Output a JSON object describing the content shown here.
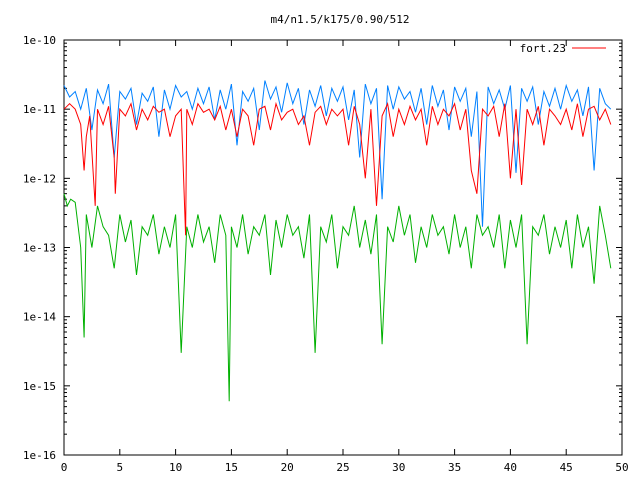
{
  "chart_data": {
    "type": "line",
    "title": "m4/n1.5/k175/0.90/512",
    "xlabel": "",
    "ylabel": "",
    "xlim": [
      0,
      50
    ],
    "ylim": [
      1e-16,
      1e-10
    ],
    "yscale": "log",
    "grid": false,
    "legend_position": "top-right",
    "x_ticks": [
      0,
      5,
      10,
      15,
      20,
      25,
      30,
      35,
      40,
      45,
      50
    ],
    "x_tick_labels": [
      "0",
      "5",
      "10",
      "15",
      "20",
      "25",
      "30",
      "35",
      "40",
      "45",
      "50"
    ],
    "y_ticks": [
      1e-16,
      1e-15,
      1e-14,
      1e-13,
      1e-12,
      1e-11,
      1e-10
    ],
    "y_tick_labels": [
      "1e-16",
      "1e-15",
      "1e-14",
      "1e-13",
      "1e-12",
      "1e-11",
      "1e-10"
    ],
    "series": [
      {
        "name": "fort.23",
        "color": "#ff0000",
        "x": [
          0.0,
          0.5,
          1.0,
          1.5,
          1.8,
          2.0,
          2.3,
          2.8,
          3.0,
          3.5,
          4.0,
          4.5,
          4.6,
          5.0,
          5.5,
          6.0,
          6.5,
          7.0,
          7.5,
          8.0,
          8.5,
          9.0,
          9.5,
          10.0,
          10.5,
          10.9,
          11.0,
          11.5,
          12.0,
          12.5,
          13.0,
          13.5,
          14.0,
          14.5,
          15.0,
          15.5,
          16.0,
          16.5,
          17.0,
          17.5,
          18.0,
          18.5,
          19.0,
          19.5,
          20.0,
          20.5,
          21.0,
          21.5,
          22.0,
          22.5,
          23.0,
          23.5,
          24.0,
          24.5,
          25.0,
          25.5,
          26.0,
          26.5,
          27.0,
          27.5,
          28.0,
          28.5,
          29.0,
          29.5,
          30.0,
          30.5,
          31.0,
          31.5,
          32.0,
          32.5,
          33.0,
          33.5,
          34.0,
          34.5,
          35.0,
          35.5,
          36.0,
          36.5,
          37.0,
          37.5,
          38.0,
          38.5,
          39.0,
          39.5,
          40.0,
          40.5,
          41.0,
          41.5,
          42.0,
          42.5,
          43.0,
          43.5,
          44.0,
          44.5,
          45.0,
          45.5,
          46.0,
          46.5,
          47.0,
          47.5,
          48.0,
          48.5,
          49.0
        ],
        "values": [
          1e-11,
          1.2e-11,
          1e-11,
          6e-12,
          1.3e-12,
          4e-12,
          8e-12,
          4e-13,
          1e-11,
          6e-12,
          1.1e-11,
          2e-12,
          6e-13,
          1e-11,
          8e-12,
          1.2e-11,
          5e-12,
          1e-11,
          7e-12,
          1.1e-11,
          9e-12,
          1e-11,
          4e-12,
          8e-12,
          1e-11,
          1.5e-13,
          1e-11,
          6e-12,
          1.2e-11,
          9e-12,
          1e-11,
          7e-12,
          1.1e-11,
          5e-12,
          1e-11,
          4e-12,
          1e-11,
          8e-12,
          3e-12,
          1e-11,
          1.1e-11,
          5e-12,
          1.2e-11,
          7e-12,
          9e-12,
          1e-11,
          6e-12,
          8e-12,
          3e-12,
          9e-12,
          1.1e-11,
          6e-12,
          1e-11,
          8e-12,
          1e-11,
          3e-12,
          1.1e-11,
          6e-12,
          1e-12,
          1e-11,
          4e-13,
          8e-12,
          1.2e-11,
          4e-12,
          1e-11,
          6e-12,
          1.1e-11,
          7e-12,
          1e-11,
          3e-12,
          1.1e-11,
          6e-12,
          1e-11,
          8e-12,
          1.2e-11,
          5e-12,
          1e-11,
          1.3e-12,
          6e-13,
          1e-11,
          8e-12,
          1.1e-11,
          4e-12,
          1.2e-11,
          1e-12,
          1e-11,
          8e-13,
          1e-11,
          6e-12,
          1.1e-11,
          3e-12,
          1e-11,
          8e-12,
          6e-12,
          1e-11,
          5e-12,
          1.2e-11,
          4e-12,
          1e-11,
          1.1e-11,
          7e-12,
          1e-11,
          6e-12
        ]
      },
      {
        "name": "",
        "color": "#0080ff",
        "x": [
          0.0,
          0.5,
          1.0,
          1.5,
          2.0,
          2.5,
          3.0,
          3.5,
          4.0,
          4.5,
          5.0,
          5.5,
          6.0,
          6.5,
          7.0,
          7.5,
          8.0,
          8.5,
          9.0,
          9.5,
          10.0,
          10.5,
          11.0,
          11.5,
          12.0,
          12.5,
          13.0,
          13.5,
          14.0,
          14.5,
          15.0,
          15.5,
          16.0,
          16.5,
          17.0,
          17.5,
          18.0,
          18.5,
          19.0,
          19.5,
          20.0,
          20.5,
          21.0,
          21.5,
          22.0,
          22.5,
          23.0,
          23.5,
          24.0,
          24.5,
          25.0,
          25.5,
          26.0,
          26.5,
          27.0,
          27.5,
          28.0,
          28.5,
          29.0,
          29.5,
          30.0,
          30.5,
          31.0,
          31.5,
          32.0,
          32.5,
          33.0,
          33.5,
          34.0,
          34.5,
          35.0,
          35.5,
          36.0,
          36.5,
          37.0,
          37.5,
          38.0,
          38.5,
          39.0,
          39.5,
          40.0,
          40.5,
          41.0,
          41.5,
          42.0,
          42.5,
          43.0,
          43.5,
          44.0,
          44.5,
          45.0,
          45.5,
          46.0,
          46.5,
          47.0,
          47.5,
          48.0,
          48.5,
          49.0
        ],
        "values": [
          2.2e-11,
          1.5e-11,
          1.8e-11,
          1e-11,
          2e-11,
          5e-12,
          1.9e-11,
          1.2e-11,
          2.3e-11,
          2e-12,
          1.8e-11,
          1.4e-11,
          2e-11,
          6e-12,
          1.7e-11,
          1.3e-11,
          2.1e-11,
          4e-12,
          1.9e-11,
          1e-11,
          2.2e-11,
          1.5e-11,
          1.8e-11,
          1e-11,
          2e-11,
          1.2e-11,
          2.1e-11,
          7e-12,
          1.9e-11,
          1e-11,
          2.3e-11,
          3e-12,
          1.8e-11,
          1.3e-11,
          2e-11,
          5e-12,
          2.6e-11,
          1.4e-11,
          2.1e-11,
          9e-12,
          2.4e-11,
          1.2e-11,
          2e-11,
          6e-12,
          1.9e-11,
          1.1e-11,
          2.2e-11,
          8e-12,
          2e-11,
          1.3e-11,
          2.1e-11,
          7e-12,
          1.9e-11,
          2e-12,
          2.3e-11,
          1.2e-11,
          2e-11,
          5e-13,
          2.2e-11,
          1e-11,
          2.1e-11,
          1.4e-11,
          1.8e-11,
          9e-12,
          2e-11,
          6e-12,
          2.2e-11,
          1.1e-11,
          1.9e-11,
          5e-12,
          2.1e-11,
          1.3e-11,
          2e-11,
          4e-12,
          1.8e-11,
          2e-13,
          2.1e-11,
          1.2e-11,
          1.9e-11,
          1e-11,
          2.2e-11,
          1.2e-12,
          2e-11,
          1.3e-11,
          2.1e-11,
          6e-12,
          1.8e-11,
          1.1e-11,
          2e-11,
          1e-11,
          2.2e-11,
          1.3e-11,
          1.9e-11,
          8e-12,
          2.1e-11,
          1.3e-12,
          2e-11,
          1.2e-11,
          1e-11
        ]
      },
      {
        "name": "",
        "color": "#00b000",
        "x": [
          0.0,
          0.3,
          0.6,
          1.0,
          1.5,
          1.8,
          2.0,
          2.5,
          3.0,
          3.5,
          4.0,
          4.5,
          5.0,
          5.5,
          6.0,
          6.5,
          7.0,
          7.5,
          8.0,
          8.5,
          9.0,
          9.5,
          10.0,
          10.5,
          11.0,
          11.5,
          12.0,
          12.5,
          13.0,
          13.5,
          14.0,
          14.5,
          14.8,
          15.0,
          15.5,
          16.0,
          16.5,
          17.0,
          17.5,
          18.0,
          18.5,
          19.0,
          19.5,
          20.0,
          20.5,
          21.0,
          21.5,
          22.0,
          22.5,
          23.0,
          23.5,
          24.0,
          24.5,
          25.0,
          25.5,
          26.0,
          26.5,
          27.0,
          27.5,
          28.0,
          28.5,
          29.0,
          29.5,
          30.0,
          30.5,
          31.0,
          31.5,
          32.0,
          32.5,
          33.0,
          33.5,
          34.0,
          34.5,
          35.0,
          35.5,
          36.0,
          36.5,
          37.0,
          37.5,
          38.0,
          38.5,
          39.0,
          39.5,
          40.0,
          40.5,
          41.0,
          41.5,
          42.0,
          42.5,
          43.0,
          43.5,
          44.0,
          44.5,
          45.0,
          45.5,
          46.0,
          46.5,
          47.0,
          47.5,
          48.0,
          48.5,
          49.0
        ],
        "values": [
          6e-13,
          4e-13,
          5e-13,
          4.5e-13,
          1e-13,
          5e-15,
          3e-13,
          1e-13,
          4e-13,
          2e-13,
          1.5e-13,
          5e-14,
          3e-13,
          1.2e-13,
          2.5e-13,
          4e-14,
          2e-13,
          1.5e-13,
          3e-13,
          8e-14,
          2e-13,
          1e-13,
          3e-13,
          3e-15,
          2e-13,
          1e-13,
          3e-13,
          1.2e-13,
          2e-13,
          6e-14,
          3e-13,
          1.5e-13,
          6e-16,
          2e-13,
          1e-13,
          3e-13,
          8e-14,
          2e-13,
          1.5e-13,
          3e-13,
          4e-14,
          2.5e-13,
          1e-13,
          3e-13,
          1.5e-13,
          2e-13,
          7e-14,
          3e-13,
          3e-15,
          2e-13,
          1.2e-13,
          3e-13,
          5e-14,
          2e-13,
          1.5e-13,
          4e-13,
          1e-13,
          2.5e-13,
          8e-14,
          3e-13,
          4e-15,
          2e-13,
          1.2e-13,
          4e-13,
          1.5e-13,
          3e-13,
          6e-14,
          2e-13,
          1e-13,
          3e-13,
          1.5e-13,
          2e-13,
          8e-14,
          3e-13,
          1e-13,
          2e-13,
          5e-14,
          3e-13,
          1.5e-13,
          2e-13,
          1e-13,
          3e-13,
          5e-14,
          2.5e-13,
          1e-13,
          3e-13,
          4e-15,
          2e-13,
          1.5e-13,
          3e-13,
          8e-14,
          2e-13,
          1e-13,
          2.5e-13,
          5e-14,
          3e-13,
          1e-13,
          2e-13,
          3e-14,
          4e-13,
          1.5e-13,
          5e-14
        ]
      }
    ]
  }
}
